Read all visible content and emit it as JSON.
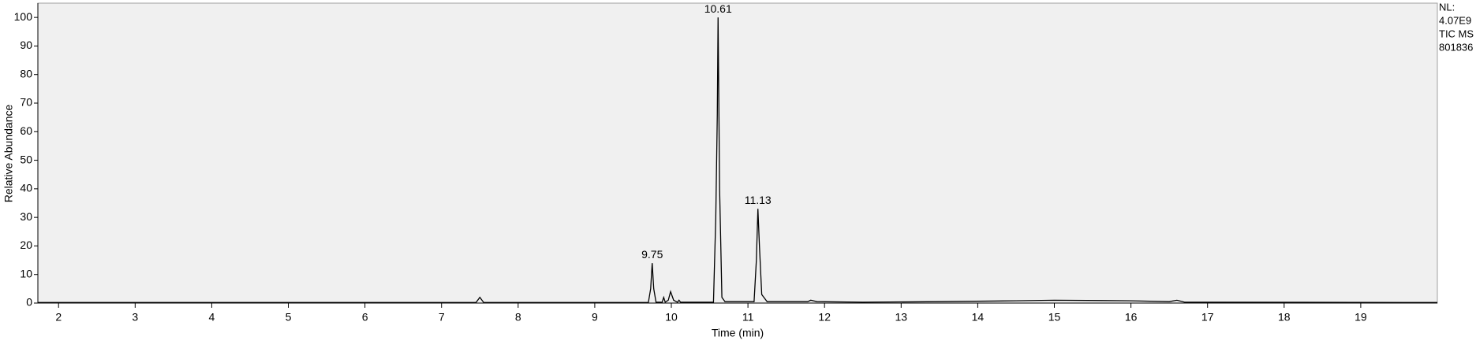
{
  "chart_data": {
    "type": "line",
    "xlabel": "Time (min)",
    "ylabel": "Relative Abundance",
    "x": [
      1.73,
      7.45,
      7.5,
      7.55,
      9.7,
      9.73,
      9.75,
      9.77,
      9.8,
      9.88,
      9.9,
      9.92,
      9.96,
      9.99,
      10.03,
      10.08,
      10.1,
      10.12,
      10.55,
      10.58,
      10.6,
      10.61,
      10.63,
      10.66,
      10.7,
      11.08,
      11.11,
      11.13,
      11.15,
      11.18,
      11.25,
      11.78,
      11.82,
      11.9,
      12.5,
      13.5,
      14.5,
      15.0,
      16.0,
      16.5,
      16.6,
      16.7,
      20.0
    ],
    "values": [
      0.2,
      0.2,
      2,
      0.2,
      0.2,
      5,
      14,
      5,
      0.3,
      0.3,
      2,
      0.3,
      1,
      4,
      1,
      0.3,
      1,
      0.3,
      0.3,
      30,
      66,
      100,
      40,
      2,
      0.5,
      0.5,
      15,
      33,
      20,
      3,
      0.5,
      0.5,
      1,
      0.5,
      0.3,
      0.5,
      0.8,
      1,
      0.8,
      0.5,
      1,
      0.3,
      0.2
    ],
    "color": "#000000",
    "annotations": [
      {
        "label": "9.75",
        "x": 9.75,
        "y": 14
      },
      {
        "label": "10.61",
        "x": 10.61,
        "y": 100
      },
      {
        "label": "11.13",
        "x": 11.13,
        "y": 33
      }
    ],
    "info": [
      "NL:",
      "4.07E9",
      "TIC MS",
      "801836"
    ],
    "xlim": [
      1.73,
      20.0
    ],
    "ylim": [
      0,
      105
    ],
    "xticks": [
      2,
      3,
      4,
      5,
      6,
      7,
      8,
      9,
      10,
      11,
      12,
      13,
      14,
      15,
      16,
      17,
      18,
      19
    ],
    "yticks": [
      0,
      10,
      20,
      30,
      40,
      50,
      60,
      70,
      80,
      90,
      100
    ]
  }
}
